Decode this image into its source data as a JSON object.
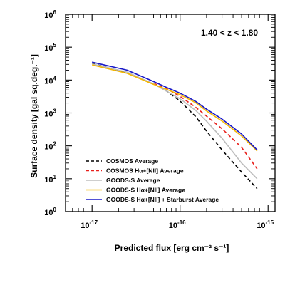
{
  "chart_data": {
    "type": "line",
    "xlabel": "Predicted flux [erg cm⁻² s⁻¹]",
    "ylabel": "Surface density [gal sq.deg.⁻¹]",
    "annotation": "1.40 < z < 1.80",
    "xscale": "log",
    "yscale": "log",
    "xlim": [
      5e-18,
      1.2e-15
    ],
    "ylim": [
      1,
      1000000
    ],
    "x_ticks": [
      {
        "value": 1e-17,
        "base": "10",
        "exp": "-17"
      },
      {
        "value": 1e-16,
        "base": "10",
        "exp": "-16"
      },
      {
        "value": 1e-15,
        "base": "10",
        "exp": "-15"
      }
    ],
    "y_ticks": [
      {
        "value": 1,
        "base": "10",
        "exp": "0"
      },
      {
        "value": 10,
        "base": "10",
        "exp": "1"
      },
      {
        "value": 100,
        "base": "10",
        "exp": "2"
      },
      {
        "value": 1000,
        "base": "10",
        "exp": "3"
      },
      {
        "value": 10000,
        "base": "10",
        "exp": "4"
      },
      {
        "value": 100000,
        "base": "10",
        "exp": "5"
      },
      {
        "value": 1000000,
        "base": "10",
        "exp": "6"
      }
    ],
    "legend_position": "bottom-left",
    "series": [
      {
        "name": "COSMOS Average",
        "color": "#000000",
        "dash": "dashed",
        "x": [
          1e-17,
          2.5e-17,
          5e-17,
          7e-17,
          1e-16,
          1.5e-16,
          2e-16,
          3e-16,
          5e-16,
          7.5e-16
        ],
        "y": [
          32000,
          17000,
          7600,
          4700,
          2300,
          780,
          280,
          75,
          16,
          5
        ]
      },
      {
        "name": "COSMOS Hα+[NII] Average",
        "color": "#e8201c",
        "dash": "dashed",
        "x": [
          5e-17,
          7e-17,
          1e-16,
          1.5e-16,
          2e-16,
          3e-16,
          5e-16,
          7.5e-16
        ],
        "y": [
          8000,
          5500,
          3200,
          1500,
          800,
          330,
          90,
          20
        ]
      },
      {
        "name": "GOODS-S Average",
        "color": "#bdbdbd",
        "dash": "solid",
        "x": [
          1e-17,
          2.5e-17,
          5e-17,
          7e-17,
          1e-16,
          1.5e-16,
          2e-16,
          3e-16,
          5e-16,
          7.5e-16
        ],
        "y": [
          31000,
          17500,
          7700,
          4600,
          2700,
          1200,
          560,
          170,
          30,
          10
        ]
      },
      {
        "name": "GOODS-S Hα+[NII] Average",
        "color": "#f5b700",
        "dash": "solid",
        "x": [
          1e-17,
          2.5e-17,
          5e-17,
          7e-17,
          1e-16,
          1.5e-16,
          2e-16,
          3e-16,
          5e-16,
          7.5e-16
        ],
        "y": [
          29000,
          16000,
          7400,
          5200,
          3600,
          2050,
          1150,
          570,
          200,
          70
        ]
      },
      {
        "name": "GOODS-S Hα+[NII] + Starburst Average",
        "color": "#1818c8",
        "dash": "solid",
        "x": [
          1e-17,
          2.5e-17,
          5e-17,
          7e-17,
          1e-16,
          1.5e-16,
          2e-16,
          3e-16,
          5e-16,
          7.5e-16
        ],
        "y": [
          35000,
          20000,
          9000,
          6000,
          4000,
          2250,
          1300,
          650,
          230,
          75
        ]
      }
    ]
  }
}
